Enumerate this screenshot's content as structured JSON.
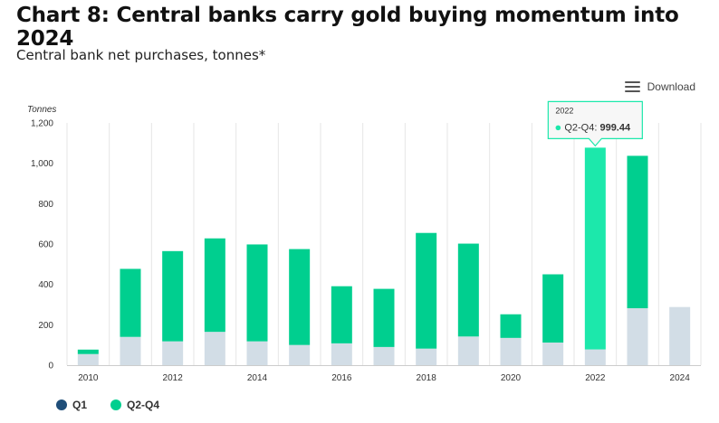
{
  "header": {
    "title": "Chart 8: Central banks carry gold buying momentum into 2024",
    "subtitle": "Central bank net purchases, tonnes*"
  },
  "toolbar": {
    "download_label": "Download",
    "download_icon": "menu-icon"
  },
  "colors": {
    "q1": "#d2dde6",
    "q2q4": "#00cf8f",
    "q2q4_hover": "#1ce8ab",
    "legend_q1": "#1f4e79"
  },
  "tooltip": {
    "category": "2022",
    "series": "Q2-Q4",
    "value_text": "999.44"
  },
  "chart_data": {
    "type": "bar",
    "stacked": true,
    "ylabel": "Tonnes",
    "ylim": [
      0,
      1200
    ],
    "yticks": [
      0,
      200,
      400,
      600,
      800,
      1000,
      1200
    ],
    "ytick_labels": [
      "0",
      "200",
      "400",
      "600",
      "800",
      "1,000",
      "1,200"
    ],
    "categories": [
      "2010",
      "2011",
      "2012",
      "2013",
      "2014",
      "2015",
      "2016",
      "2017",
      "2018",
      "2019",
      "2020",
      "2021",
      "2022",
      "2023",
      "2024"
    ],
    "xtick_labels": [
      "2010",
      "",
      "2012",
      "",
      "2014",
      "",
      "2016",
      "",
      "2018",
      "",
      "2020",
      "",
      "2022",
      "",
      "2024"
    ],
    "grid": "vertical",
    "legend_position": "bottom-left",
    "series": [
      {
        "name": "Q1",
        "values": [
          55,
          140,
          118,
          165,
          118,
          100,
          108,
          90,
          82,
          142,
          135,
          112,
          78,
          282,
          288
        ]
      },
      {
        "name": "Q2-Q4",
        "values": [
          22,
          337,
          447,
          463,
          480,
          475,
          283,
          288,
          573,
          460,
          117,
          338,
          999.44,
          755,
          0
        ]
      }
    ],
    "highlight": {
      "category": "2022",
      "series": "Q2-Q4"
    }
  }
}
